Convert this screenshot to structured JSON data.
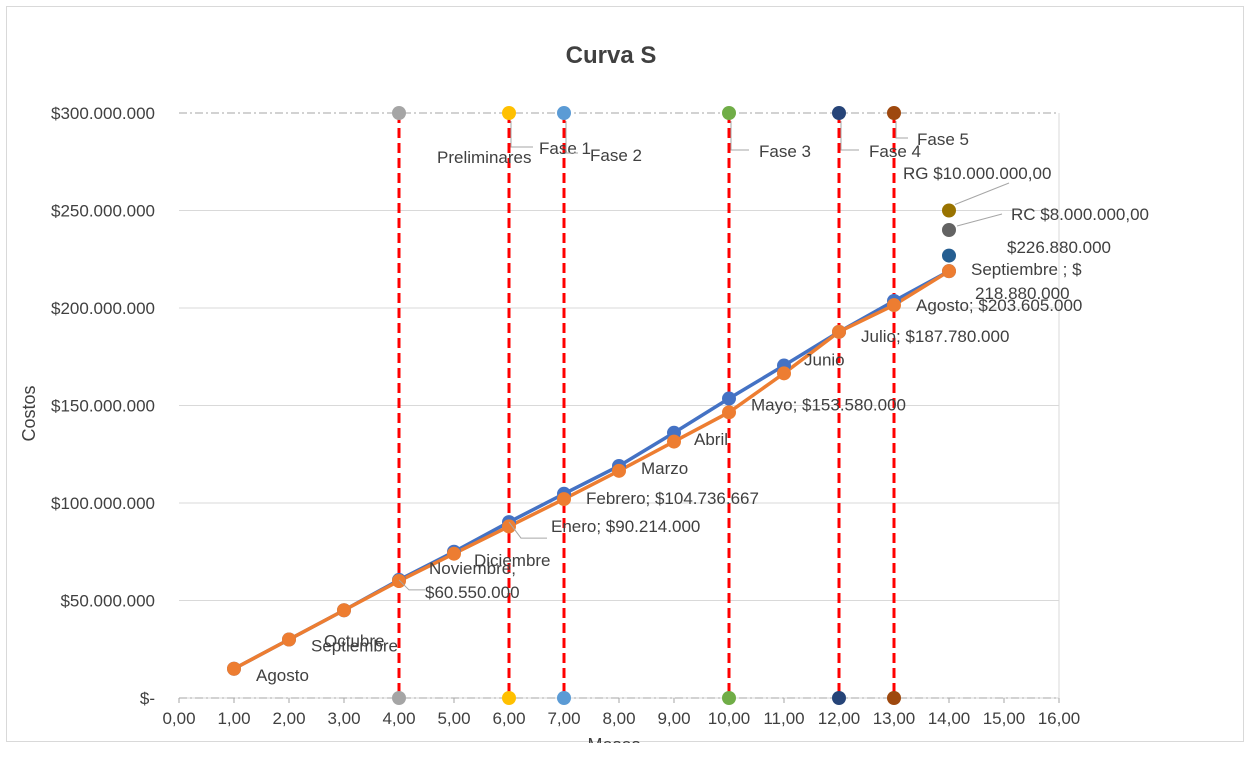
{
  "chart_data": {
    "type": "line",
    "title": "Curva S",
    "xlabel": "Meses",
    "ylabel": "Costos",
    "xlim": [
      0,
      16
    ],
    "ylim": [
      0,
      300000000
    ],
    "x_ticks": [
      0,
      1,
      2,
      3,
      4,
      5,
      6,
      7,
      8,
      9,
      10,
      11,
      12,
      13,
      14,
      15,
      16
    ],
    "x_tick_labels": [
      "0,00",
      "1,00",
      "2,00",
      "3,00",
      "4,00",
      "5,00",
      "6,00",
      "7,00",
      "8,00",
      "9,00",
      "10,00",
      "11,00",
      "12,00",
      "13,00",
      "14,00",
      "15,00",
      "16,00"
    ],
    "y_ticks": [
      0,
      50000000,
      100000000,
      150000000,
      200000000,
      250000000,
      300000000
    ],
    "y_tick_labels": [
      "$-",
      "$50.000.000",
      "$100.000.000",
      "$150.000.000",
      "$200.000.000",
      "$250.000.000",
      "$300.000.000"
    ],
    "grid": true,
    "legend": "none",
    "series": [
      {
        "color": "#4472c4",
        "x": [
          1,
          2,
          3,
          4,
          5,
          6,
          7,
          8,
          9,
          10,
          11,
          12,
          13,
          14
        ],
        "y": [
          15000000,
          30000000,
          45000000,
          60550000,
          75000000,
          90214000,
          104736667,
          119000000,
          136000000,
          153580000,
          170500000,
          187780000,
          203605000,
          218880000
        ]
      },
      {
        "color": "#ed7d31",
        "x": [
          1,
          2,
          3,
          4,
          5,
          6,
          7,
          8,
          9,
          10,
          11,
          12,
          13,
          14
        ],
        "y": [
          15000000,
          30000000,
          45000000,
          60000000,
          74000000,
          88000000,
          102000000,
          116500000,
          131500000,
          146500000,
          166500000,
          187780000,
          201500000,
          218880000
        ]
      }
    ],
    "point_labels": [
      {
        "text": "Agosto",
        "x": 1,
        "y": 15000000
      },
      {
        "text": "Septiembre",
        "x": 2,
        "y": 30000000
      },
      {
        "text": "Octubre",
        "x": 3,
        "y": 45000000
      },
      {
        "text": "Noviembre;",
        "text2": "$60.550.000",
        "x": 4,
        "y": 60550000
      },
      {
        "text": "Diciembre",
        "x": 5,
        "y": 75000000
      },
      {
        "text": "Enero;  $90.214.000",
        "x": 6,
        "y": 90214000
      },
      {
        "text": "Febrero;  $104.736.667",
        "x": 7,
        "y": 104736667
      },
      {
        "text": "Marzo",
        "x": 8,
        "y": 119000000
      },
      {
        "text": "Abril",
        "x": 9,
        "y": 136000000
      },
      {
        "text": "Mayo;  $153.580.000",
        "x": 10,
        "y": 153580000
      },
      {
        "text": "Junio",
        "x": 11,
        "y": 170500000
      },
      {
        "text": "Julio;  $187.780.000",
        "x": 12,
        "y": 187780000
      },
      {
        "text": "Agosto;  $203.605.000",
        "x": 13,
        "y": 203605000
      },
      {
        "text": "Septiembre ; $",
        "text2": "218.880.000",
        "x": 14,
        "y": 218880000
      }
    ],
    "phases": [
      {
        "name": "Preliminares",
        "x": 4,
        "color": "#a5a5a5"
      },
      {
        "name": "Fase 1",
        "x": 6,
        "color": "#ffc000"
      },
      {
        "name": "Fase 2",
        "x": 7,
        "color": "#5b9bd5"
      },
      {
        "name": "Fase 3",
        "x": 10,
        "color": "#70ad47"
      },
      {
        "name": "Fase 4",
        "x": 12,
        "color": "#264478"
      },
      {
        "name": "Fase 5",
        "x": 13,
        "color": "#9e480e"
      }
    ],
    "phase_line_color": "#ff0000",
    "extra_points": [
      {
        "label": "$226.880.000",
        "x": 14,
        "y": 226880000,
        "color": "#255e91"
      },
      {
        "label": "RC $8.000.000,00",
        "x": 14,
        "y": 240000000,
        "color": "#636363"
      },
      {
        "label": "RG $10.000.000,00",
        "x": 14,
        "y": 250000000,
        "color": "#997300"
      }
    ]
  }
}
